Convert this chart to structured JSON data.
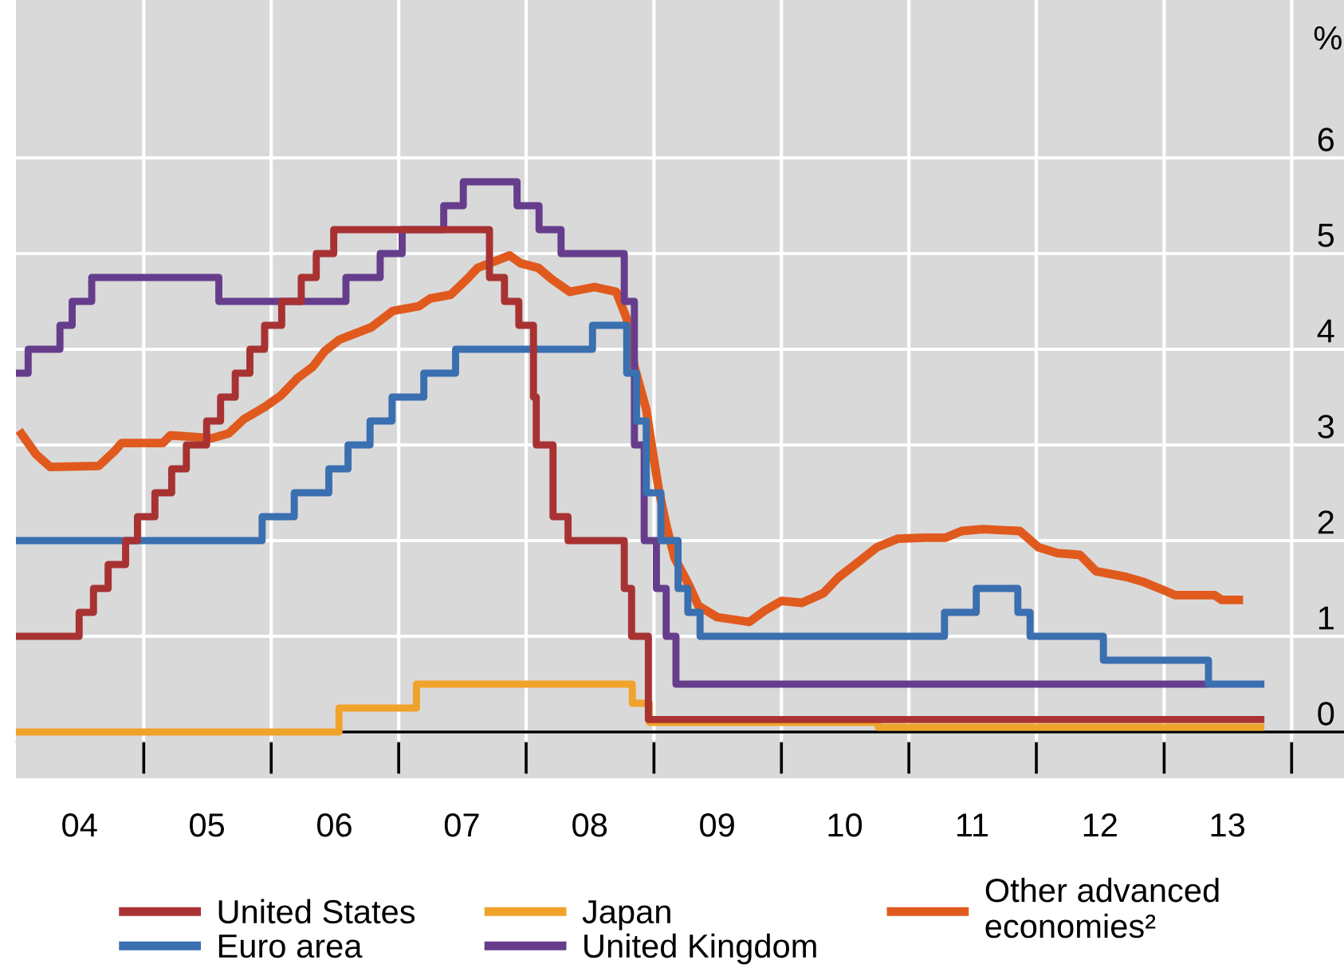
{
  "chart_data": {
    "type": "step",
    "ylabel": "%",
    "xlim": [
      "2004-01-01",
      "2014-05-31"
    ],
    "xticks": [
      {
        "value": "2004-07-01",
        "label": "04"
      },
      {
        "value": "2005-01-01",
        "label": null
      },
      {
        "value": "2005-07-01",
        "label": "05"
      },
      {
        "value": "2006-01-01",
        "label": null
      },
      {
        "value": "2006-07-01",
        "label": "06"
      },
      {
        "value": "2007-01-01",
        "label": null
      },
      {
        "value": "2007-07-01",
        "label": "07"
      },
      {
        "value": "2008-01-01",
        "label": null
      },
      {
        "value": "2008-07-01",
        "label": "08"
      },
      {
        "value": "2009-01-01",
        "label": null
      },
      {
        "value": "2009-07-01",
        "label": "09"
      },
      {
        "value": "2010-01-01",
        "label": null
      },
      {
        "value": "2010-07-01",
        "label": "10"
      },
      {
        "value": "2011-01-01",
        "label": null
      },
      {
        "value": "2011-07-01",
        "label": "11"
      },
      {
        "value": "2012-01-01",
        "label": null
      },
      {
        "value": "2012-07-01",
        "label": "12"
      },
      {
        "value": "2013-01-01",
        "label": null
      },
      {
        "value": "2013-07-01",
        "label": "13"
      },
      {
        "value": "2014-01-01",
        "label": null
      }
    ],
    "ylim": [
      -0.1,
      7.65
    ],
    "yticks": [
      0,
      1,
      2,
      3,
      4,
      5,
      6
    ],
    "grid": true,
    "legend": "bottom",
    "ref_lines": [
      {
        "axis": "y",
        "value": 0,
        "label": null,
        "color": "#000000"
      }
    ],
    "marker": "none",
    "line_style": "solid",
    "series": [
      {
        "name": "United States",
        "color": "#a83232",
        "x": [
          "2004-01-01",
          "2004-06-30",
          "2004-08-10",
          "2004-09-21",
          "2004-11-10",
          "2004-12-14",
          "2005-02-02",
          "2005-03-22",
          "2005-05-03",
          "2005-06-30",
          "2005-08-09",
          "2005-09-20",
          "2005-11-01",
          "2005-12-13",
          "2006-01-31",
          "2006-03-28",
          "2006-05-10",
          "2006-06-29",
          "2007-09-18",
          "2007-10-31",
          "2007-12-11",
          "2008-01-22",
          "2008-01-30",
          "2008-03-18",
          "2008-04-30",
          "2008-10-08",
          "2008-10-29",
          "2008-12-16",
          "2013-10-15"
        ],
        "values": [
          1.0,
          1.25,
          1.5,
          1.75,
          2.0,
          2.25,
          2.5,
          2.75,
          3.0,
          3.25,
          3.5,
          3.75,
          4.0,
          4.25,
          4.5,
          4.75,
          5.0,
          5.25,
          4.75,
          4.5,
          4.25,
          3.5,
          3.0,
          2.25,
          2.0,
          1.5,
          1.0,
          0.13,
          0.13
        ]
      },
      {
        "name": "Euro area",
        "color": "#3a6fb0",
        "x": [
          "2004-01-01",
          "2005-12-06",
          "2006-03-08",
          "2006-06-15",
          "2006-08-09",
          "2006-10-11",
          "2006-12-13",
          "2007-03-14",
          "2007-06-13",
          "2008-07-09",
          "2008-10-15",
          "2008-11-12",
          "2008-12-10",
          "2009-01-21",
          "2009-03-11",
          "2009-04-08",
          "2009-05-13",
          "2011-04-13",
          "2011-07-13",
          "2011-11-09",
          "2011-12-14",
          "2012-07-11",
          "2013-05-08",
          "2013-10-15"
        ],
        "values": [
          2.0,
          2.25,
          2.5,
          2.75,
          3.0,
          3.25,
          3.5,
          3.75,
          4.0,
          4.25,
          3.75,
          3.25,
          2.5,
          2.0,
          1.5,
          1.25,
          1.0,
          1.25,
          1.5,
          1.25,
          1.0,
          0.75,
          0.5,
          0.5
        ]
      },
      {
        "name": "Japan",
        "color": "#f0a32a",
        "x": [
          "2004-01-01",
          "2006-07-14",
          "2007-02-21",
          "2008-10-31",
          "2008-12-19",
          "2010-10-05",
          "2013-10-15"
        ],
        "values": [
          0.0,
          0.25,
          0.5,
          0.3,
          0.1,
          0.05,
          0.05
        ]
      },
      {
        "name": "United Kingdom",
        "color": "#663d8c",
        "x": [
          "2004-01-01",
          "2004-02-05",
          "2004-05-06",
          "2004-06-10",
          "2004-08-05",
          "2005-08-04",
          "2006-08-03",
          "2006-11-09",
          "2007-01-11",
          "2007-05-10",
          "2007-07-05",
          "2007-12-06",
          "2008-02-07",
          "2008-04-10",
          "2008-10-08",
          "2008-11-06",
          "2008-12-04",
          "2009-01-08",
          "2009-02-05",
          "2009-03-05",
          "2013-05-08"
        ],
        "values": [
          3.75,
          4.0,
          4.25,
          4.5,
          4.75,
          4.5,
          4.75,
          5.0,
          5.25,
          5.5,
          5.75,
          5.5,
          5.25,
          5.0,
          4.5,
          3.0,
          2.0,
          1.5,
          1.0,
          0.5,
          0.5
        ]
      },
      {
        "name": "Other advanced economies²",
        "type": "line",
        "color": "#e05a1e",
        "x": [
          "2004-01-10",
          "2004-02-28",
          "2004-04-08",
          "2004-08-25",
          "2004-10-08",
          "2004-10-30",
          "2005-02-25",
          "2005-03-18",
          "2005-07-15",
          "2005-09-01",
          "2005-10-15",
          "2005-12-15",
          "2006-01-30",
          "2006-03-18",
          "2006-05-01",
          "2006-06-03",
          "2006-07-15",
          "2006-10-15",
          "2006-12-15",
          "2007-02-28",
          "2007-04-01",
          "2007-05-30",
          "2007-07-15",
          "2007-08-15",
          "2007-11-15",
          "2007-12-15",
          "2008-02-05",
          "2008-03-15",
          "2008-05-05",
          "2008-07-15",
          "2008-09-15",
          "2008-10-15",
          "2008-11-06",
          "2008-12-10",
          "2008-12-24",
          "2009-01-15",
          "2009-02-06",
          "2009-03-01",
          "2009-04-12",
          "2009-05-08",
          "2009-07-01",
          "2009-10-01",
          "2009-11-15",
          "2010-01-01",
          "2010-03-01",
          "2010-05-01",
          "2010-06-15",
          "2010-08-07",
          "2010-10-01",
          "2010-12-01",
          "2011-02-15",
          "2011-04-15",
          "2011-06-01",
          "2011-08-01",
          "2011-11-15",
          "2012-01-07",
          "2012-03-01",
          "2012-05-05",
          "2012-06-20",
          "2012-09-15",
          "2012-11-01",
          "2013-01-01",
          "2013-02-01",
          "2013-05-25",
          "2013-06-15",
          "2013-08-15"
        ],
        "values": [
          3.15,
          2.9,
          2.77,
          2.78,
          2.93,
          3.02,
          3.02,
          3.1,
          3.07,
          3.12,
          3.27,
          3.4,
          3.52,
          3.7,
          3.82,
          3.98,
          4.1,
          4.23,
          4.4,
          4.45,
          4.53,
          4.57,
          4.73,
          4.85,
          4.98,
          4.9,
          4.85,
          4.73,
          4.6,
          4.65,
          4.6,
          4.32,
          3.82,
          3.37,
          3.03,
          2.53,
          2.15,
          1.82,
          1.53,
          1.32,
          1.2,
          1.15,
          1.27,
          1.37,
          1.35,
          1.45,
          1.62,
          1.77,
          1.93,
          2.02,
          2.03,
          2.03,
          2.1,
          2.12,
          2.1,
          1.93,
          1.87,
          1.85,
          1.68,
          1.62,
          1.57,
          1.48,
          1.43,
          1.43,
          1.38,
          1.38
        ]
      }
    ]
  }
}
